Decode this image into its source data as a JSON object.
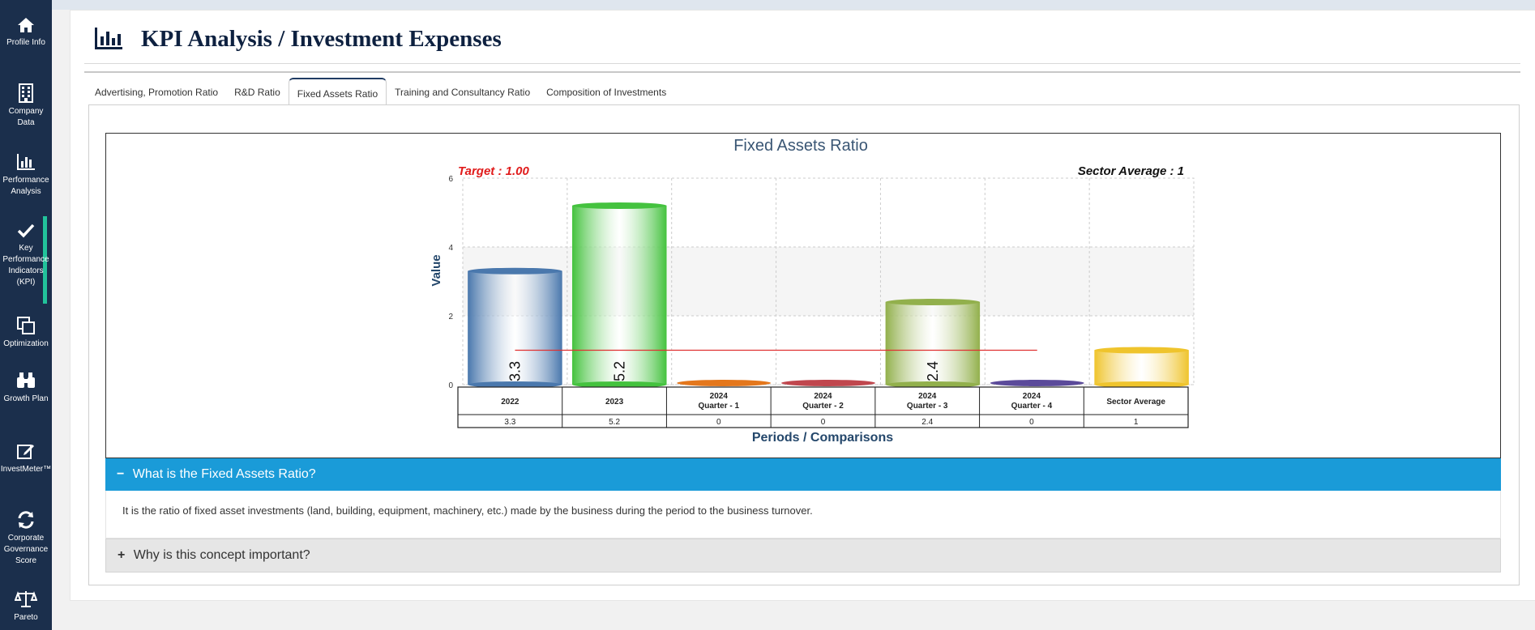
{
  "sidebar": {
    "items": [
      {
        "label": "Profile Info",
        "icon": "home-icon"
      },
      {
        "label": "Company Data",
        "icon": "building-icon"
      },
      {
        "label": "Performance Analysis",
        "icon": "bar-chart-icon"
      },
      {
        "label": "Key Performance Indicators (KPI)",
        "icon": "check-icon"
      },
      {
        "label": "Optimization",
        "icon": "copy-icon"
      },
      {
        "label": "Growth Plan",
        "icon": "binoculars-icon"
      },
      {
        "label": "InvestMeter™",
        "icon": "edit-icon"
      },
      {
        "label": "Corporate Governance Score",
        "icon": "refresh-icon"
      },
      {
        "label": "Pareto",
        "icon": "scale-icon"
      }
    ],
    "accent": "#22c39b",
    "background": "#1b2f4c"
  },
  "page": {
    "title": "KPI Analysis / Investment Expenses",
    "title_icon": "bar-chart-icon"
  },
  "tabs": [
    {
      "label": "Advertising, Promotion Ratio"
    },
    {
      "label": "R&D Ratio"
    },
    {
      "label": "Fixed Assets Ratio",
      "active": true
    },
    {
      "label": "Training and Consultancy Ratio"
    },
    {
      "label": "Composition of Investments"
    }
  ],
  "chart_data": {
    "type": "bar",
    "title": "Fixed Assets Ratio",
    "target_label": "Target : 1.00",
    "target_value": 1.0,
    "sector_label": "Sector Average : 1",
    "xlabel": "Periods / Comparisons",
    "ylabel": "Value",
    "ylim": [
      0,
      6
    ],
    "yticks": [
      0,
      2,
      4,
      6
    ],
    "grid": true,
    "categories": [
      "2022",
      "2023",
      "2024 Quarter - 1",
      "2024 Quarter - 2",
      "2024 Quarter - 3",
      "2024 Quarter - 4",
      "Sector Average"
    ],
    "category_lines": [
      [
        "2022"
      ],
      [
        "2023"
      ],
      [
        "2024",
        "Quarter - 1"
      ],
      [
        "2024",
        "Quarter - 2"
      ],
      [
        "2024",
        "Quarter - 3"
      ],
      [
        "2024",
        "Quarter - 4"
      ],
      [
        "Sector Average"
      ]
    ],
    "values": [
      3.3,
      5.2,
      0,
      0,
      2.4,
      0,
      1
    ],
    "table_values": [
      "3.3",
      "5.2",
      "0",
      "0",
      "2.4",
      "0",
      "1"
    ],
    "bar_labels": [
      "3.3",
      "5.2",
      "",
      "",
      "2.4",
      "",
      ""
    ],
    "colors": [
      "#4a78ad",
      "#44c23e",
      "#e4771c",
      "#c0474e",
      "#92b04c",
      "#5b4a9a",
      "#efc42c"
    ],
    "target_line_color": "#e03030"
  },
  "accordion": {
    "q1_symbol": "−",
    "q1_title": "What is the Fixed Assets Ratio?",
    "q1_body": "It is the ratio of fixed asset investments (land, building, equipment, machinery, etc.) made by the business during the period to the business turnover.",
    "q2_symbol": "+",
    "q2_title": "Why is this concept important?"
  }
}
